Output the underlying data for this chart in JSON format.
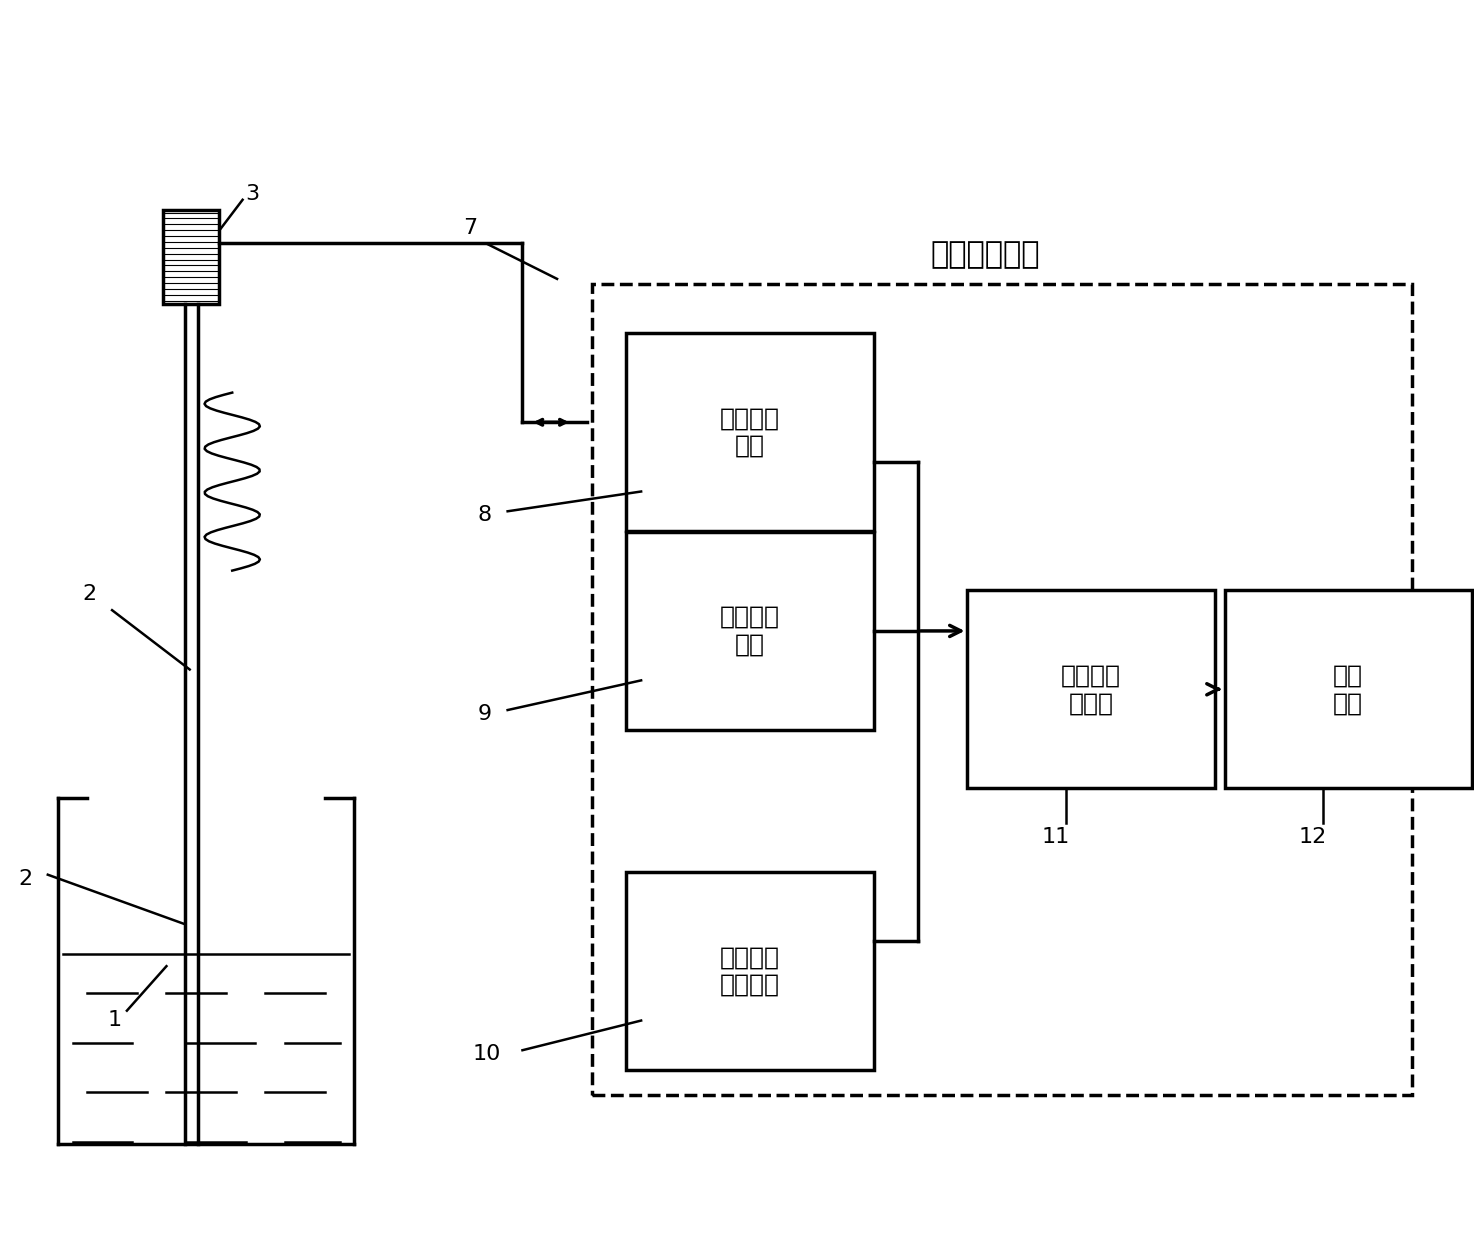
{
  "title": "综合功能模块",
  "box_labels": {
    "excite": "激励接收\n装置",
    "temp": "温度测量\n装置",
    "depth": "浸润深度\n测量装置",
    "data": "数据处理\n理模块",
    "result": "结果\n显示"
  },
  "numbers": {
    "1": [
      1,
      "1"
    ],
    "2": [
      2,
      "2"
    ],
    "3": [
      3,
      "3"
    ],
    "7": [
      7,
      "7"
    ],
    "8": [
      8,
      "8"
    ],
    "9": [
      9,
      "9"
    ],
    "10": [
      10,
      "10"
    ],
    "11": [
      11,
      "11"
    ],
    "12": [
      12,
      "12"
    ]
  },
  "bg_color": "#ffffff",
  "box_color": "#ffffff",
  "line_color": "#000000",
  "font_size": 14,
  "label_font_size": 16
}
